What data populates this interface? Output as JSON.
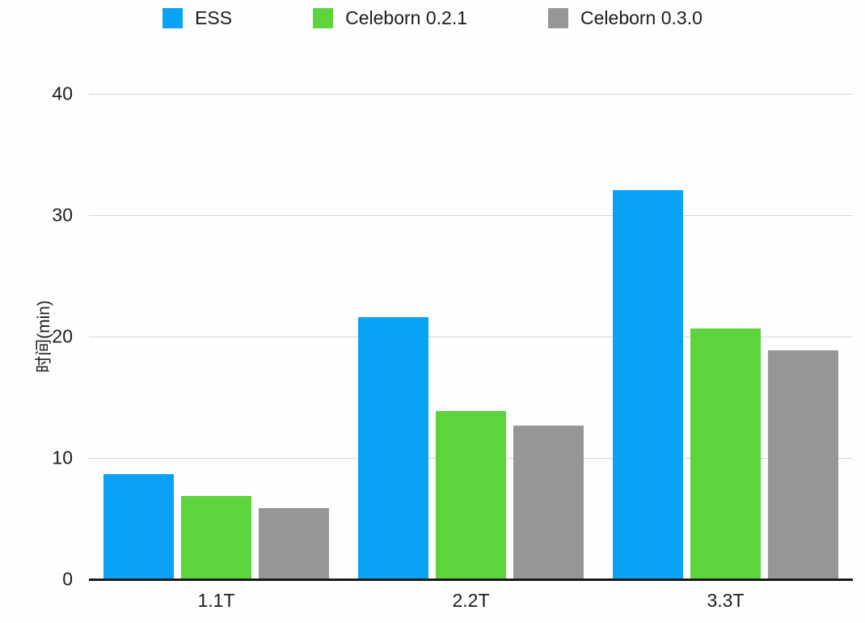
{
  "chart_data": {
    "type": "bar",
    "title": "",
    "xlabel": "",
    "ylabel": "时间(min)",
    "categories": [
      "1.1T",
      "2.2T",
      "3.3T"
    ],
    "series": [
      {
        "name": "ESS",
        "color": "#0aa2f5",
        "values": [
          8.7,
          21.6,
          32.1
        ]
      },
      {
        "name": "Celeborn 0.2.1",
        "color": "#5dd33c",
        "values": [
          6.9,
          13.9,
          20.7
        ]
      },
      {
        "name": "Celeborn 0.3.0",
        "color": "#969696",
        "values": [
          5.9,
          12.7,
          18.9
        ]
      }
    ],
    "ylim": [
      0,
      40
    ],
    "yticks": [
      0,
      10,
      20,
      30,
      40
    ],
    "grid": true,
    "legend_position": "top"
  },
  "colors": {
    "gridline": "#d4d4d4",
    "axis_line": "#1a1a1a",
    "text": "#1c1c1c",
    "background": "#fefefe"
  }
}
